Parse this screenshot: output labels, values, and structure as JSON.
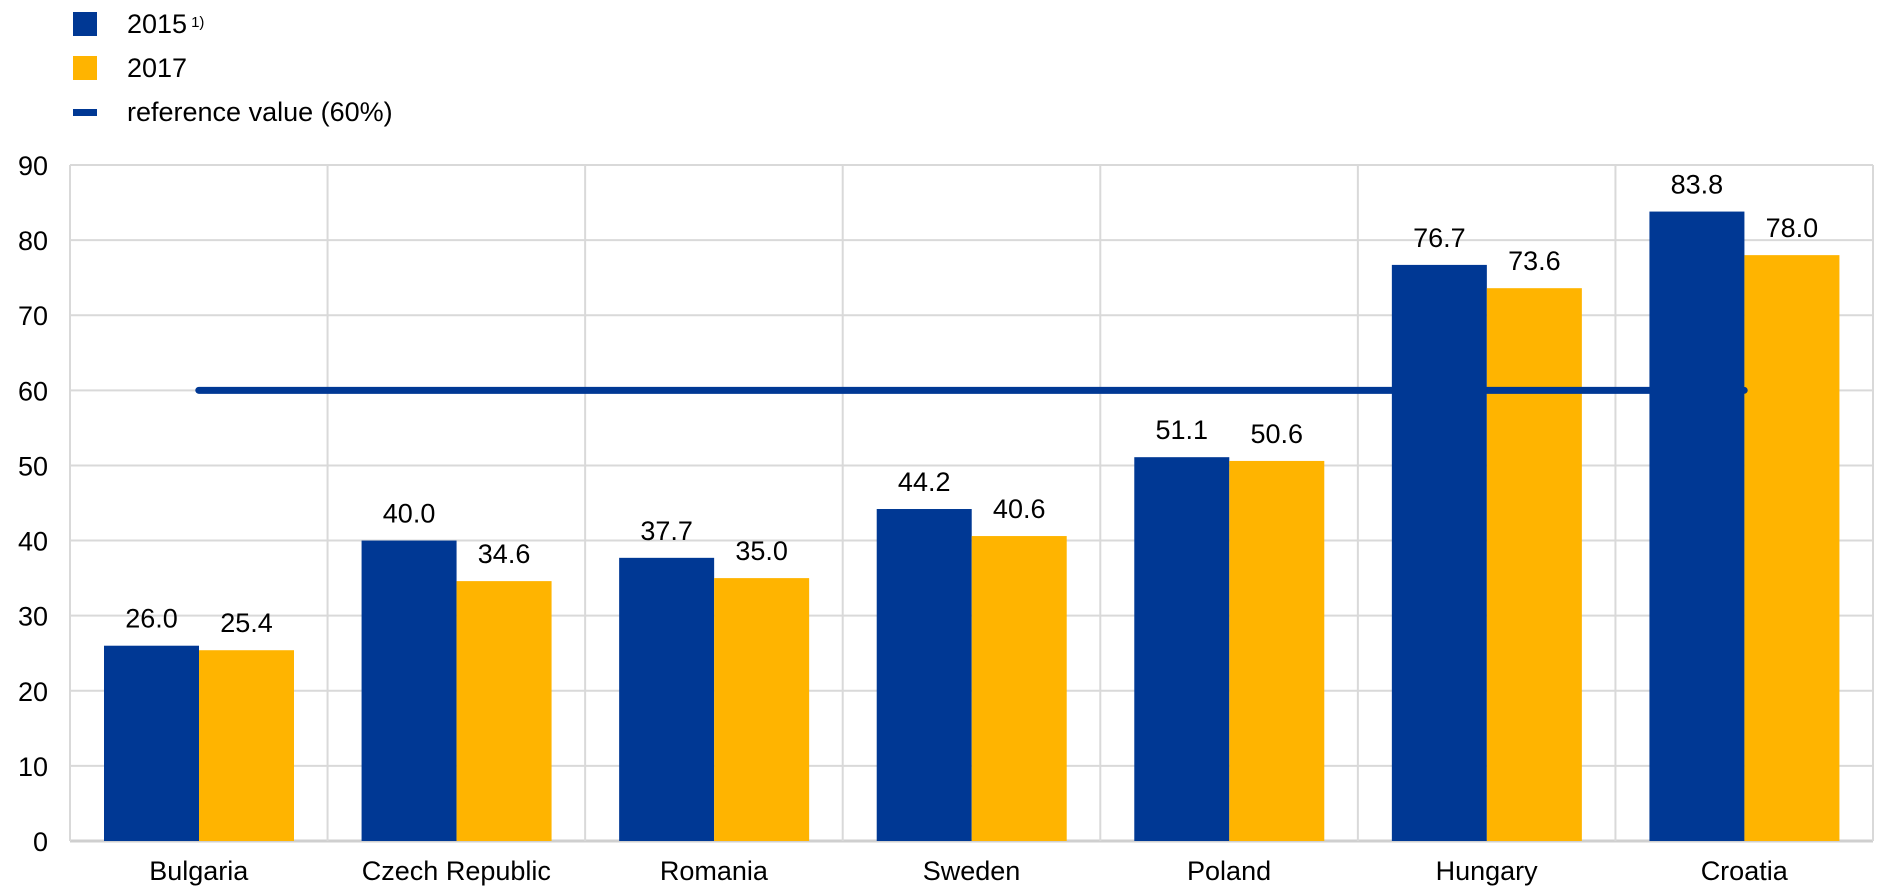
{
  "chart_data": {
    "type": "bar",
    "title": "",
    "xlabel": "",
    "ylabel": "",
    "ylim": [
      0,
      90
    ],
    "yticks": [
      0,
      10,
      20,
      30,
      40,
      50,
      60,
      70,
      80,
      90
    ],
    "grid": true,
    "legend_position": "top-left",
    "categories": [
      "Bulgaria",
      "Czech Republic",
      "Romania",
      "Sweden",
      "Poland",
      "Hungary",
      "Croatia"
    ],
    "series": [
      {
        "name": "2015",
        "note": "1)",
        "color": "#003894",
        "values": [
          26.0,
          40.0,
          37.7,
          44.2,
          51.1,
          76.7,
          83.8
        ],
        "labels": [
          "26.0",
          "40.0",
          "37.7",
          "44.2",
          "51.1",
          "76.7",
          "83.8"
        ]
      },
      {
        "name": "2017",
        "color": "#FFB400",
        "values": [
          25.4,
          34.6,
          35.0,
          40.6,
          50.6,
          73.6,
          78.0
        ],
        "labels": [
          "25.4",
          "34.6",
          "35.0",
          "40.6",
          "50.6",
          "73.6",
          "78.0"
        ]
      }
    ],
    "reference": {
      "name": "reference value (60%)",
      "value": 60,
      "color": "#003894"
    }
  }
}
